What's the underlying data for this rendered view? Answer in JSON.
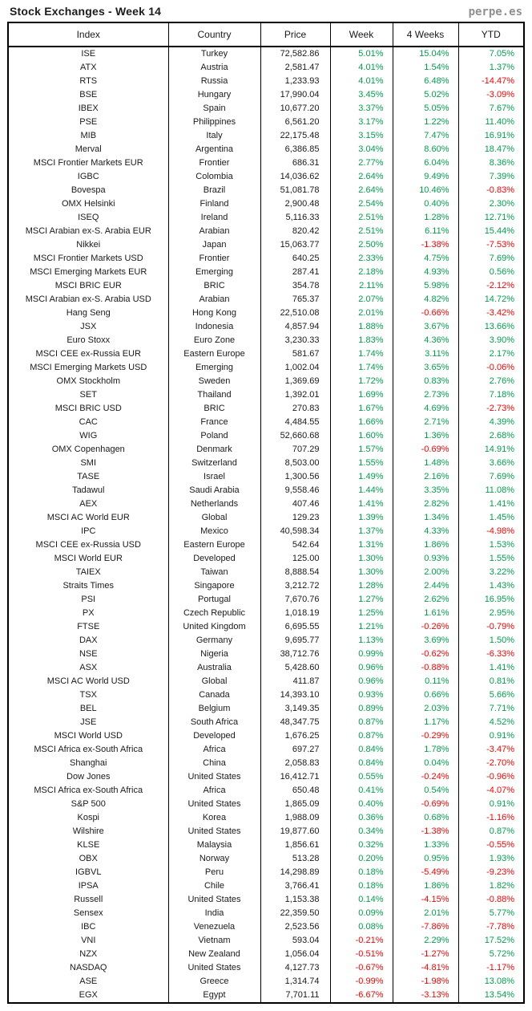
{
  "header": {
    "title": "Stock Exchanges - Week 14",
    "logo": "perpe.es"
  },
  "colors": {
    "positive": "#00a14b",
    "negative": "#ff0000",
    "neutral": "#1a1a1a"
  },
  "chart_data": {
    "type": "table",
    "title": "Stock Exchanges - Week 14",
    "columns": [
      "Index",
      "Country",
      "Price",
      "Week",
      "4 Weeks",
      "YTD"
    ],
    "rows": [
      [
        "ISE",
        "Turkey",
        "72,582.86",
        "5.01%",
        "15.04%",
        "7.05%"
      ],
      [
        "ATX",
        "Austria",
        "2,581.47",
        "4.01%",
        "1.54%",
        "1.37%"
      ],
      [
        "RTS",
        "Russia",
        "1,233.93",
        "4.01%",
        "6.48%",
        "-14.47%"
      ],
      [
        "BSE",
        "Hungary",
        "17,990.04",
        "3.45%",
        "5.02%",
        "-3.09%"
      ],
      [
        "IBEX",
        "Spain",
        "10,677.20",
        "3.37%",
        "5.05%",
        "7.67%"
      ],
      [
        "PSE",
        "Philippines",
        "6,561.20",
        "3.17%",
        "1.22%",
        "11.40%"
      ],
      [
        "MIB",
        "Italy",
        "22,175.48",
        "3.15%",
        "7.47%",
        "16.91%"
      ],
      [
        "Merval",
        "Argentina",
        "6,386.85",
        "3.04%",
        "8.60%",
        "18.47%"
      ],
      [
        "MSCI Frontier Markets EUR",
        "Frontier",
        "686.31",
        "2.77%",
        "6.04%",
        "8.36%"
      ],
      [
        "IGBC",
        "Colombia",
        "14,036.62",
        "2.64%",
        "9.49%",
        "7.39%"
      ],
      [
        "Bovespa",
        "Brazil",
        "51,081.78",
        "2.64%",
        "10.46%",
        "-0.83%"
      ],
      [
        "OMX Helsinki",
        "Finland",
        "2,900.48",
        "2.54%",
        "0.40%",
        "2.30%"
      ],
      [
        "ISEQ",
        "Ireland",
        "5,116.33",
        "2.51%",
        "1.28%",
        "12.71%"
      ],
      [
        "MSCI Arabian ex-S. Arabia EUR",
        "Arabian",
        "820.42",
        "2.51%",
        "6.11%",
        "15.44%"
      ],
      [
        "Nikkei",
        "Japan",
        "15,063.77",
        "2.50%",
        "-1.38%",
        "-7.53%"
      ],
      [
        "MSCI Frontier Markets USD",
        "Frontier",
        "640.25",
        "2.33%",
        "4.75%",
        "7.69%"
      ],
      [
        "MSCI Emerging Markets EUR",
        "Emerging",
        "287.41",
        "2.18%",
        "4.93%",
        "0.56%"
      ],
      [
        "MSCI BRIC EUR",
        "BRIC",
        "354.78",
        "2.11%",
        "5.98%",
        "-2.12%"
      ],
      [
        "MSCI Arabian ex-S. Arabia USD",
        "Arabian",
        "765.37",
        "2.07%",
        "4.82%",
        "14.72%"
      ],
      [
        "Hang Seng",
        "Hong Kong",
        "22,510.08",
        "2.01%",
        "-0.66%",
        "-3.42%"
      ],
      [
        "JSX",
        "Indonesia",
        "4,857.94",
        "1.88%",
        "3.67%",
        "13.66%"
      ],
      [
        "Euro Stoxx",
        "Euro Zone",
        "3,230.33",
        "1.83%",
        "4.36%",
        "3.90%"
      ],
      [
        "MSCI CEE ex-Russia EUR",
        "Eastern Europe",
        "581.67",
        "1.74%",
        "3.11%",
        "2.17%"
      ],
      [
        "MSCI Emerging Markets USD",
        "Emerging",
        "1,002.04",
        "1.74%",
        "3.65%",
        "-0.06%"
      ],
      [
        "OMX Stockholm",
        "Sweden",
        "1,369.69",
        "1.72%",
        "0.83%",
        "2.76%"
      ],
      [
        "SET",
        "Thailand",
        "1,392.01",
        "1.69%",
        "2.73%",
        "7.18%"
      ],
      [
        "MSCI BRIC USD",
        "BRIC",
        "270.83",
        "1.67%",
        "4.69%",
        "-2.73%"
      ],
      [
        "CAC",
        "France",
        "4,484.55",
        "1.66%",
        "2.71%",
        "4.39%"
      ],
      [
        "WIG",
        "Poland",
        "52,660.68",
        "1.60%",
        "1.36%",
        "2.68%"
      ],
      [
        "OMX Copenhagen",
        "Denmark",
        "707.29",
        "1.57%",
        "-0.69%",
        "14.91%"
      ],
      [
        "SMI",
        "Switzerland",
        "8,503.00",
        "1.55%",
        "1.48%",
        "3.66%"
      ],
      [
        "TASE",
        "Israel",
        "1,300.56",
        "1.49%",
        "2.16%",
        "7.69%"
      ],
      [
        "Tadawul",
        "Saudi Arabia",
        "9,558.46",
        "1.44%",
        "3.35%",
        "11.08%"
      ],
      [
        "AEX",
        "Netherlands",
        "407.46",
        "1.41%",
        "2.82%",
        "1.41%"
      ],
      [
        "MSCI AC World EUR",
        "Global",
        "129.23",
        "1.39%",
        "1.34%",
        "1.45%"
      ],
      [
        "IPC",
        "Mexico",
        "40,598.34",
        "1.37%",
        "4.33%",
        "-4.98%"
      ],
      [
        "MSCI CEE ex-Russia USD",
        "Eastern Europe",
        "542.64",
        "1.31%",
        "1.86%",
        "1.53%"
      ],
      [
        "MSCI World EUR",
        "Developed",
        "125.00",
        "1.30%",
        "0.93%",
        "1.55%"
      ],
      [
        "TAIEX",
        "Taiwan",
        "8,888.54",
        "1.30%",
        "2.00%",
        "3.22%"
      ],
      [
        "Straits Times",
        "Singapore",
        "3,212.72",
        "1.28%",
        "2.44%",
        "1.43%"
      ],
      [
        "PSI",
        "Portugal",
        "7,670.76",
        "1.27%",
        "2.62%",
        "16.95%"
      ],
      [
        "PX",
        "Czech Republic",
        "1,018.19",
        "1.25%",
        "1.61%",
        "2.95%"
      ],
      [
        "FTSE",
        "United Kingdom",
        "6,695.55",
        "1.21%",
        "-0.26%",
        "-0.79%"
      ],
      [
        "DAX",
        "Germany",
        "9,695.77",
        "1.13%",
        "3.69%",
        "1.50%"
      ],
      [
        "NSE",
        "Nigeria",
        "38,712.76",
        "0.99%",
        "-0.62%",
        "-6.33%"
      ],
      [
        "ASX",
        "Australia",
        "5,428.60",
        "0.96%",
        "-0.88%",
        "1.41%"
      ],
      [
        "MSCI AC World USD",
        "Global",
        "411.87",
        "0.96%",
        "0.11%",
        "0.81%"
      ],
      [
        "TSX",
        "Canada",
        "14,393.10",
        "0.93%",
        "0.66%",
        "5.66%"
      ],
      [
        "BEL",
        "Belgium",
        "3,149.35",
        "0.89%",
        "2.03%",
        "7.71%"
      ],
      [
        "JSE",
        "South Africa",
        "48,347.75",
        "0.87%",
        "1.17%",
        "4.52%"
      ],
      [
        "MSCI World USD",
        "Developed",
        "1,676.25",
        "0.87%",
        "-0.29%",
        "0.91%"
      ],
      [
        "MSCI Africa ex-South Africa",
        "Africa",
        "697.27",
        "0.84%",
        "1.78%",
        "-3.47%"
      ],
      [
        "Shanghai",
        "China",
        "2,058.83",
        "0.84%",
        "0.04%",
        "-2.70%"
      ],
      [
        "Dow Jones",
        "United States",
        "16,412.71",
        "0.55%",
        "-0.24%",
        "-0.96%"
      ],
      [
        "MSCI Africa ex-South Africa",
        "Africa",
        "650.48",
        "0.41%",
        "0.54%",
        "-4.07%"
      ],
      [
        "S&P 500",
        "United States",
        "1,865.09",
        "0.40%",
        "-0.69%",
        "0.91%"
      ],
      [
        "Kospi",
        "Korea",
        "1,988.09",
        "0.36%",
        "0.68%",
        "-1.16%"
      ],
      [
        "Wilshire",
        "United States",
        "19,877.60",
        "0.34%",
        "-1.38%",
        "0.87%"
      ],
      [
        "KLSE",
        "Malaysia",
        "1,856.61",
        "0.32%",
        "1.33%",
        "-0.55%"
      ],
      [
        "OBX",
        "Norway",
        "513.28",
        "0.20%",
        "0.95%",
        "1.93%"
      ],
      [
        "IGBVL",
        "Peru",
        "14,298.89",
        "0.18%",
        "-5.49%",
        "-9.23%"
      ],
      [
        "IPSA",
        "Chile",
        "3,766.41",
        "0.18%",
        "1.86%",
        "1.82%"
      ],
      [
        "Russell",
        "United States",
        "1,153.38",
        "0.14%",
        "-4.15%",
        "-0.88%"
      ],
      [
        "Sensex",
        "India",
        "22,359.50",
        "0.09%",
        "2.01%",
        "5.77%"
      ],
      [
        "IBC",
        "Venezuela",
        "2,523.56",
        "0.08%",
        "-7.86%",
        "-7.78%"
      ],
      [
        "VNI",
        "Vietnam",
        "593.04",
        "-0.21%",
        "2.29%",
        "17.52%"
      ],
      [
        "NZX",
        "New Zealand",
        "1,056.04",
        "-0.51%",
        "-1.27%",
        "5.72%"
      ],
      [
        "NASDAQ",
        "United States",
        "4,127.73",
        "-0.67%",
        "-4.81%",
        "-1.17%"
      ],
      [
        "ASE",
        "Greece",
        "1,314.74",
        "-0.99%",
        "-1.98%",
        "13.08%"
      ],
      [
        "EGX",
        "Egypt",
        "7,701.11",
        "-6.67%",
        "-3.13%",
        "13.54%"
      ]
    ]
  }
}
